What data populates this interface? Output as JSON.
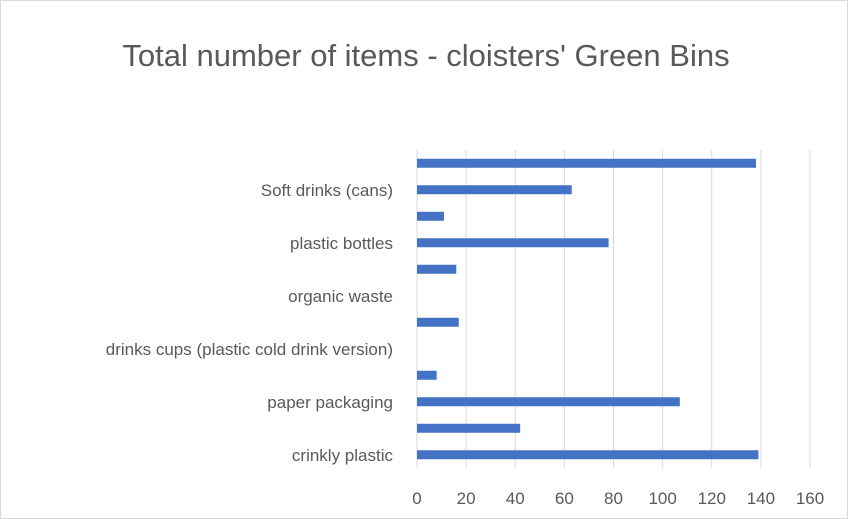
{
  "chart_data": {
    "type": "bar",
    "orientation": "horizontal",
    "title": "Total number of items - cloisters' Green Bins",
    "categories": [
      "crinkly plastic",
      "",
      "paper packaging",
      "",
      "drinks cups (plastic cold drink version)",
      "",
      "organic waste",
      "",
      "plastic bottles",
      "",
      "Soft drinks (cans)",
      ""
    ],
    "values": [
      139,
      42,
      107,
      8,
      0,
      17,
      0,
      16,
      78,
      11,
      63,
      138
    ],
    "xlim": [
      0,
      160
    ],
    "xticks": [
      0,
      20,
      40,
      60,
      80,
      100,
      120,
      140,
      160
    ],
    "xlabel": "",
    "ylabel": "",
    "grid": true,
    "legend": "none",
    "bar_color": "#4472c4",
    "grid_color": "#d9d9d9",
    "text_color": "#595959"
  }
}
